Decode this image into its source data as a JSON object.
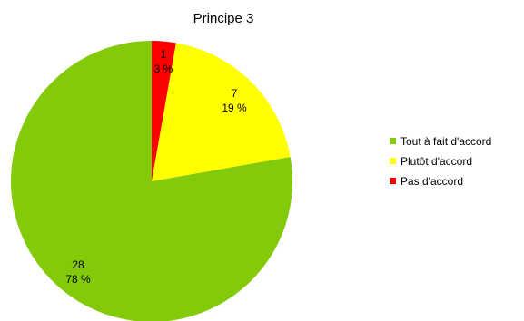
{
  "chart_data": {
    "type": "pie",
    "title": "Principe 3",
    "slices": [
      {
        "name": "Tout à fait d'accord",
        "value": 28,
        "percent": 78,
        "color": "#83ca0a"
      },
      {
        "name": "Plutôt d'accord",
        "value": 7,
        "percent": 19,
        "color": "#ffff00"
      },
      {
        "name": "Pas d'accord",
        "value": 1,
        "percent": 3,
        "color": "#ff0000"
      }
    ],
    "data_labels": [
      {
        "count": "28",
        "percent_text": "78 %"
      },
      {
        "count": "7",
        "percent_text": "19 %"
      },
      {
        "count": "1",
        "percent_text": "3 %"
      }
    ],
    "legend": {
      "placement": "right",
      "items": [
        "Tout à fait d'accord",
        "Plutôt d'accord",
        "Pas d'accord"
      ]
    }
  }
}
